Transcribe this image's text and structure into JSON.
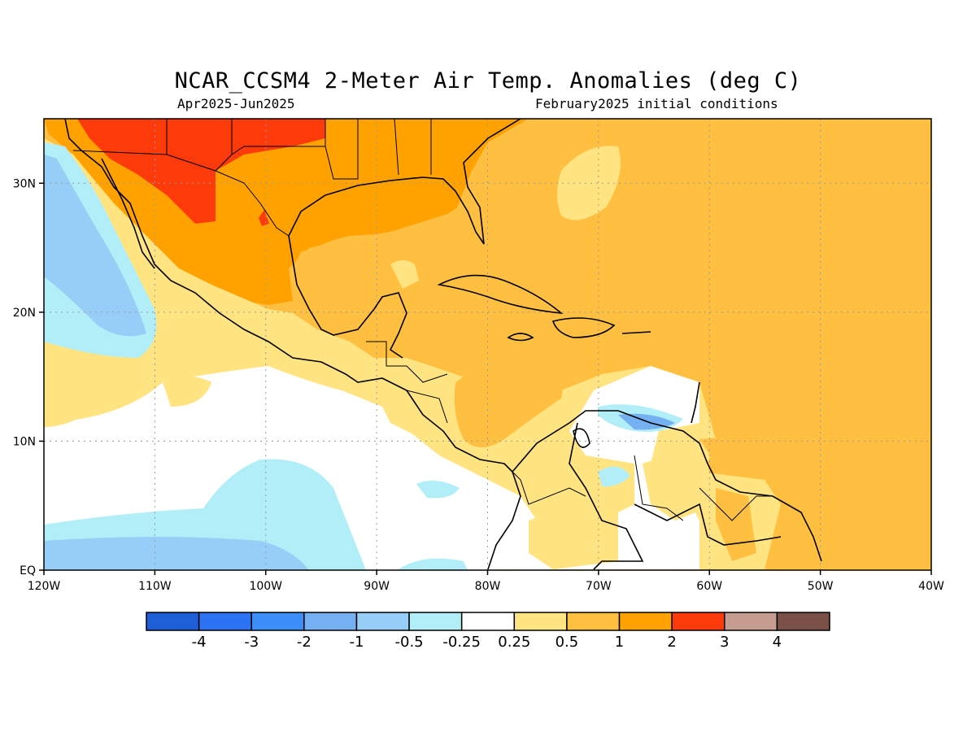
{
  "title": "NCAR_CCSM4 2-Meter Air Temp. Anomalies (deg C)",
  "period": "Apr2025-Jun2025",
  "init": "February2025 initial conditions",
  "map": {
    "lon_range": [
      -120,
      -40
    ],
    "lat_range": [
      0,
      35
    ],
    "x_ticks": [
      "120W",
      "110W",
      "100W",
      "90W",
      "80W",
      "70W",
      "60W",
      "50W",
      "40W"
    ],
    "y_ticks": [
      "30N",
      "20N",
      "10N",
      "EQ"
    ],
    "grid": "dotted",
    "ocean_base_color": "#ffbf40"
  },
  "colorbar": {
    "colors": [
      "#1e5fd8",
      "#2b73f2",
      "#3c8ff8",
      "#74b0f2",
      "#97cef7",
      "#b1eef8",
      "#ffffff",
      "#ffe481",
      "#ffbf40",
      "#ffa200",
      "#fc3a0a",
      "#c79c90",
      "#7b5047"
    ],
    "labels": [
      "-4",
      "-3",
      "-2",
      "-1",
      "-0.5",
      "-0.25",
      "0.25",
      "0.5",
      "1",
      "2",
      "3",
      "4"
    ]
  }
}
